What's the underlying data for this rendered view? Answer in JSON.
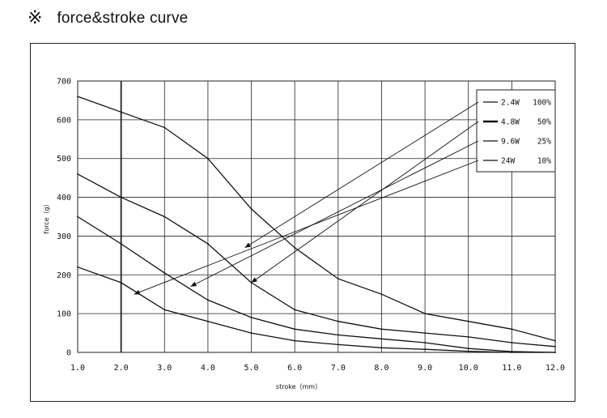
{
  "header": {
    "mark": "※",
    "title": "force&stroke curve"
  },
  "chart_data": {
    "type": "line",
    "title": "",
    "xlabel": "stroke（mm）",
    "ylabel": "force（g）",
    "xlim": [
      1.0,
      12.0
    ],
    "ylim": [
      0,
      700
    ],
    "x_ticks": [
      "1.0",
      "2.0",
      "3.0",
      "4.0",
      "5.0",
      "6.0",
      "7.0",
      "8.0",
      "9.0",
      "10.0",
      "11.0",
      "12.0"
    ],
    "y_ticks": [
      "0",
      "100",
      "200",
      "300",
      "400",
      "500",
      "600",
      "700"
    ],
    "grid": true,
    "legend_position": "top-right",
    "series": [
      {
        "name": "2.4W 100%",
        "x": [
          1,
          2,
          3,
          4,
          5,
          6,
          7,
          8,
          9,
          10,
          11,
          12
        ],
        "y": [
          660,
          620,
          580,
          500,
          370,
          270,
          190,
          150,
          100,
          80,
          60,
          30
        ]
      },
      {
        "name": "4.8W  50%",
        "x": [
          1,
          2,
          3,
          4,
          5,
          6,
          7,
          8,
          9,
          10,
          11,
          12
        ],
        "y": [
          460,
          400,
          350,
          280,
          180,
          110,
          80,
          60,
          50,
          40,
          25,
          15
        ]
      },
      {
        "name": "9.6W  25%",
        "x": [
          1,
          2,
          3,
          4,
          5,
          6,
          7,
          8,
          9,
          10,
          11,
          12
        ],
        "y": [
          350,
          280,
          205,
          135,
          90,
          60,
          45,
          35,
          25,
          10,
          2,
          0
        ]
      },
      {
        "name": "24W   10%",
        "x": [
          1,
          2,
          3,
          4,
          5,
          6,
          7,
          8,
          9,
          10,
          11,
          12
        ],
        "y": [
          220,
          180,
          110,
          80,
          50,
          30,
          20,
          12,
          8,
          3,
          0,
          0
        ]
      }
    ],
    "legend_labels": [
      {
        "name": "2.4W",
        "pct": "100%"
      },
      {
        "name": "4.8W",
        "pct": "50%"
      },
      {
        "name": "9.6W",
        "pct": "25%"
      },
      {
        "name": "24W",
        "pct": "10%"
      }
    ]
  }
}
